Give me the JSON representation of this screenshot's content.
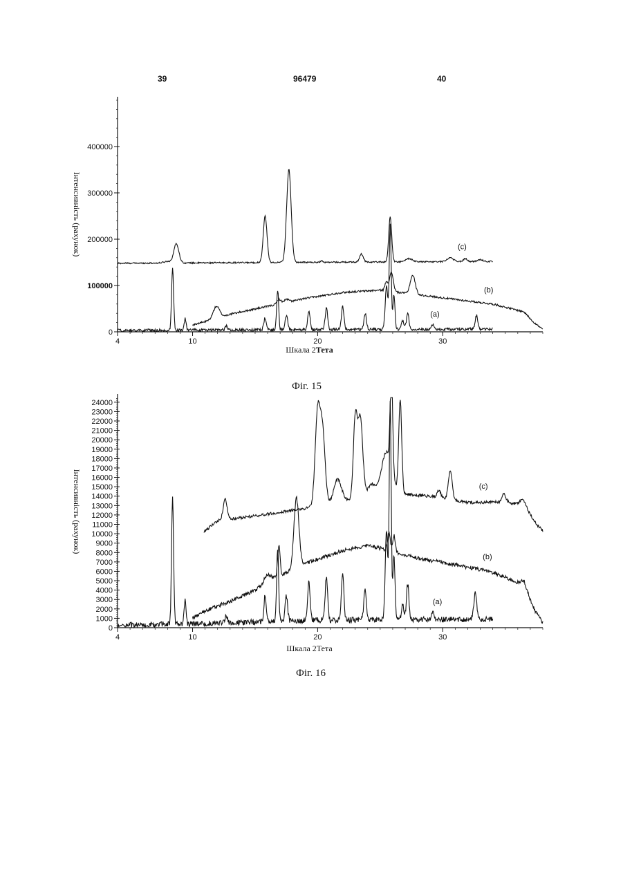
{
  "header": {
    "left_page": "39",
    "center_number": "96479",
    "right_page": "40"
  },
  "figures": [
    {
      "caption": "Фіг. 15",
      "xlabel_plain": "Шкала 2",
      "xlabel_bold": "Тета",
      "ylabel": "Інтенсивність (рахунок)"
    },
    {
      "caption": "Фіг. 16",
      "xlabel_plain": "Шкала 2Тета",
      "xlabel_bold": "",
      "ylabel": "Інтенсивність (рахунок)"
    }
  ],
  "chart_data": [
    {
      "type": "line",
      "title": "",
      "xlabel": "Шкала 2Тета",
      "ylabel": "Інтенсивність (рахунок)",
      "xlim": [
        4,
        38
      ],
      "ylim": [
        0,
        500000
      ],
      "x_ticks": [
        4,
        10,
        20,
        30
      ],
      "y_ticks": [
        0,
        100000,
        200000,
        300000,
        400000
      ],
      "y_tick_labels": [
        "0",
        "100000",
        "200000",
        "300000",
        "400000"
      ],
      "series": [
        {
          "name": "(c)",
          "label_at": [
            31.2,
            178000
          ],
          "x_range": [
            4,
            34
          ],
          "baseline": [
            [
              4,
              148000
            ],
            [
              34,
              152000
            ]
          ],
          "peaks": [
            [
              8.0,
              152000,
              0.3
            ],
            [
              8.7,
              190000,
              0.2
            ],
            [
              15.8,
              250000,
              0.15
            ],
            [
              17.7,
              350000,
              0.18
            ],
            [
              20.3,
              153000,
              0.1
            ],
            [
              23.5,
              168000,
              0.15
            ],
            [
              25.8,
              248000,
              0.12
            ],
            [
              27.3,
              158000,
              0.25
            ],
            [
              30.6,
              160000,
              0.25
            ],
            [
              31.8,
              158000,
              0.15
            ],
            [
              33.0,
              156000,
              0.2
            ]
          ],
          "noise": 1500
        },
        {
          "name": "(b)",
          "label_at": [
            33.3,
            85000
          ],
          "x_range": [
            10,
            38
          ],
          "baseline": [
            [
              10,
              15000
            ],
            [
              11,
              22000
            ],
            [
              13,
              38000
            ],
            [
              16,
              55000
            ],
            [
              19,
              72000
            ],
            [
              22,
              85000
            ],
            [
              25,
              90000
            ],
            [
              28,
              80000
            ],
            [
              31,
              70000
            ],
            [
              34,
              60000
            ],
            [
              36.5,
              43000
            ],
            [
              37.3,
              20000
            ],
            [
              38,
              5000
            ]
          ],
          "peaks": [
            [
              11.9,
              55000,
              0.25
            ],
            [
              16.9,
              70000,
              0.15
            ],
            [
              17.5,
              70000,
              0.2
            ],
            [
              25.5,
              108000,
              0.12
            ],
            [
              25.9,
              128000,
              0.15
            ],
            [
              27.6,
              122000,
              0.2
            ]
          ],
          "noise": 2000
        },
        {
          "name": "(a)",
          "label_at": [
            29.0,
            33000
          ],
          "x_range": [
            4,
            34
          ],
          "baseline": [
            [
              4,
              3000
            ],
            [
              34,
              6000
            ]
          ],
          "peaks": [
            [
              8.4,
              140000,
              0.08
            ],
            [
              9.4,
              28000,
              0.08
            ],
            [
              12.7,
              12000,
              0.1
            ],
            [
              15.8,
              30000,
              0.1
            ],
            [
              16.8,
              90000,
              0.08
            ],
            [
              17.5,
              35000,
              0.1
            ],
            [
              19.3,
              45000,
              0.1
            ],
            [
              20.7,
              50000,
              0.1
            ],
            [
              22.0,
              55000,
              0.1
            ],
            [
              23.8,
              40000,
              0.1
            ],
            [
              25.5,
              100000,
              0.1
            ],
            [
              25.8,
              230000,
              0.08
            ],
            [
              26.1,
              80000,
              0.08
            ],
            [
              26.8,
              25000,
              0.1
            ],
            [
              27.2,
              40000,
              0.1
            ],
            [
              29.2,
              15000,
              0.1
            ],
            [
              32.7,
              35000,
              0.1
            ]
          ],
          "noise": 3000
        }
      ]
    },
    {
      "type": "line",
      "title": "",
      "xlabel": "Шкала 2Тета",
      "ylabel": "Інтенсивність (рахунок)",
      "xlim": [
        4,
        38
      ],
      "ylim": [
        0,
        24500
      ],
      "x_ticks": [
        4,
        10,
        20,
        30
      ],
      "y_ticks": [
        0,
        1000,
        2000,
        3000,
        4000,
        5000,
        6000,
        7000,
        8000,
        9000,
        10000,
        11000,
        12000,
        13000,
        14000,
        15000,
        16000,
        17000,
        18000,
        19000,
        20000,
        21000,
        22000,
        23000,
        24000
      ],
      "y_tick_labels": [
        "0",
        "1000",
        "2000",
        "3000",
        "4000",
        "5000",
        "6000",
        "7000",
        "8000",
        "9000",
        "10000",
        "11000",
        "12000",
        "13000",
        "14000",
        "15000",
        "16000",
        "17000",
        "18000",
        "19000",
        "20000",
        "21000",
        "22000",
        "23000",
        "24000"
      ],
      "series": [
        {
          "name": "(c)",
          "label_at": [
            32.9,
            14800
          ],
          "x_range": [
            10.9,
            38
          ],
          "baseline": [
            [
              10.9,
              10200
            ],
            [
              12,
              11400
            ],
            [
              15,
              11900
            ],
            [
              19,
              12700
            ],
            [
              22,
              13500
            ],
            [
              26,
              14300
            ],
            [
              29,
              14000
            ],
            [
              32,
              13300
            ],
            [
              35,
              13400
            ],
            [
              36.5,
              13000
            ],
            [
              37.5,
              11000
            ],
            [
              38,
              10300
            ]
          ],
          "peaks": [
            [
              12.6,
              13800,
              0.15
            ],
            [
              20.0,
              22800,
              0.2
            ],
            [
              20.4,
              20500,
              0.2
            ],
            [
              21.6,
              15800,
              0.3
            ],
            [
              23.0,
              21800,
              0.15
            ],
            [
              23.4,
              22500,
              0.2
            ],
            [
              24.3,
              15200,
              0.3
            ],
            [
              25.5,
              18700,
              0.4
            ],
            [
              25.9,
              24500,
              0.1
            ],
            [
              26.6,
              24200,
              0.12
            ],
            [
              29.7,
              14600,
              0.15
            ],
            [
              30.6,
              16700,
              0.15
            ],
            [
              34.9,
              14200,
              0.15
            ],
            [
              36.4,
              13600,
              0.25
            ]
          ],
          "noise": 150
        },
        {
          "name": "(b)",
          "label_at": [
            33.2,
            7300
          ],
          "x_range": [
            10,
            38
          ],
          "baseline": [
            [
              10,
              1000
            ],
            [
              11,
              1800
            ],
            [
              13,
              2800
            ],
            [
              15,
              4000
            ],
            [
              17,
              5500
            ],
            [
              18.6,
              6600
            ],
            [
              20,
              7300
            ],
            [
              22,
              8200
            ],
            [
              24,
              8800
            ],
            [
              26,
              8100
            ],
            [
              28,
              7400
            ],
            [
              31,
              6700
            ],
            [
              34,
              5900
            ],
            [
              36,
              4800
            ],
            [
              36.5,
              4600
            ],
            [
              37.3,
              2000
            ],
            [
              38,
              500
            ]
          ],
          "peaks": [
            [
              16.0,
              5600,
              0.3
            ],
            [
              16.9,
              8800,
              0.1
            ],
            [
              18.3,
              13800,
              0.2
            ],
            [
              25.7,
              10200,
              0.1
            ],
            [
              26.1,
              9800,
              0.1
            ],
            [
              36.5,
              5000,
              0.2
            ]
          ],
          "noise": 200
        },
        {
          "name": "(a)",
          "label_at": [
            29.2,
            2500
          ],
          "x_range": [
            4,
            34
          ],
          "baseline": [
            [
              4,
              300
            ],
            [
              10,
              400
            ],
            [
              20,
              800
            ],
            [
              34,
              900
            ]
          ],
          "peaks": [
            [
              8.4,
              14000,
              0.08
            ],
            [
              9.4,
              2900,
              0.08
            ],
            [
              12.7,
              1200,
              0.1
            ],
            [
              15.8,
              3400,
              0.1
            ],
            [
              16.8,
              8400,
              0.08
            ],
            [
              17.5,
              3400,
              0.1
            ],
            [
              19.3,
              4800,
              0.1
            ],
            [
              20.7,
              5500,
              0.1
            ],
            [
              22.0,
              5600,
              0.1
            ],
            [
              23.8,
              4200,
              0.1
            ],
            [
              25.5,
              10400,
              0.1
            ],
            [
              25.8,
              24000,
              0.08
            ],
            [
              26.1,
              8000,
              0.08
            ],
            [
              26.8,
              2400,
              0.1
            ],
            [
              27.2,
              4600,
              0.1
            ],
            [
              29.2,
              1800,
              0.1
            ],
            [
              32.6,
              3600,
              0.12
            ]
          ],
          "noise": 300
        }
      ]
    }
  ]
}
